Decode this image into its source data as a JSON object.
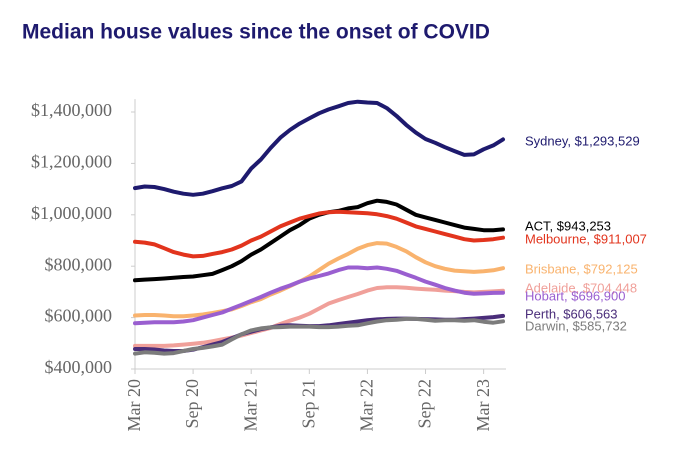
{
  "chart_data": {
    "type": "line",
    "title": "Median house values since the onset of COVID",
    "categories": [
      "Mar 20",
      null,
      null,
      null,
      null,
      null,
      "Sep 20",
      null,
      null,
      null,
      null,
      null,
      "Mar 21",
      null,
      null,
      null,
      null,
      null,
      "Sep 21",
      null,
      null,
      null,
      null,
      null,
      "Mar 22",
      null,
      null,
      null,
      null,
      null,
      "Sep 22",
      null,
      null,
      null,
      null,
      null,
      "Mar 23",
      null,
      null
    ],
    "ylim": [
      400000,
      1450000
    ],
    "yticks": [
      {
        "value": 400000,
        "label": "$400,000"
      },
      {
        "value": 600000,
        "label": "$600,000"
      },
      {
        "value": 800000,
        "label": "$800,000"
      },
      {
        "value": 1000000,
        "label": "$1,000,000"
      },
      {
        "value": 1200000,
        "label": "$1,200,000"
      },
      {
        "value": 1400000,
        "label": "$1,400,000"
      }
    ],
    "grid": false,
    "series": [
      {
        "name": "Sydney, $1,293,529",
        "color": "#1e1a6e",
        "values": [
          1104000,
          1110000,
          1108000,
          1100000,
          1090000,
          1082000,
          1078000,
          1082000,
          1092000,
          1103000,
          1112000,
          1130000,
          1180000,
          1215000,
          1260000,
          1300000,
          1330000,
          1355000,
          1375000,
          1395000,
          1410000,
          1422000,
          1435000,
          1440000,
          1437000,
          1435000,
          1415000,
          1385000,
          1350000,
          1320000,
          1295000,
          1280000,
          1263000,
          1248000,
          1233000,
          1235000,
          1255000,
          1270000,
          1293529
        ]
      },
      {
        "name": "ACT, $943,253",
        "color": "#000000",
        "values": [
          745000,
          748000,
          750000,
          752000,
          755000,
          758000,
          760000,
          765000,
          770000,
          785000,
          800000,
          820000,
          845000,
          865000,
          890000,
          915000,
          940000,
          960000,
          985000,
          1000000,
          1010000,
          1015000,
          1025000,
          1030000,
          1045000,
          1055000,
          1050000,
          1040000,
          1020000,
          1000000,
          990000,
          980000,
          970000,
          960000,
          950000,
          945000,
          940000,
          940000,
          943253
        ]
      },
      {
        "name": "Melbourne, $911,007",
        "color": "#e2341d",
        "values": [
          895000,
          892000,
          885000,
          870000,
          855000,
          845000,
          838000,
          840000,
          848000,
          855000,
          865000,
          880000,
          900000,
          915000,
          935000,
          955000,
          970000,
          985000,
          995000,
          1005000,
          1010000,
          1012000,
          1010000,
          1008000,
          1006000,
          1002000,
          995000,
          985000,
          970000,
          955000,
          945000,
          935000,
          925000,
          915000,
          905000,
          900000,
          902000,
          905000,
          911007
        ]
      },
      {
        "name": "Brisbane, $792,125",
        "color": "#f9b36e",
        "values": [
          608000,
          610000,
          610000,
          608000,
          605000,
          605000,
          608000,
          612000,
          618000,
          625000,
          632000,
          645000,
          660000,
          672000,
          690000,
          705000,
          722000,
          740000,
          760000,
          785000,
          810000,
          830000,
          848000,
          868000,
          882000,
          890000,
          888000,
          875000,
          858000,
          835000,
          815000,
          800000,
          790000,
          783000,
          780000,
          778000,
          780000,
          784000,
          792125
        ]
      },
      {
        "name": "Adelaide, $704,448",
        "color": "#f0a09a",
        "values": [
          490000,
          490000,
          490000,
          490000,
          492000,
          495000,
          498000,
          502000,
          508000,
          515000,
          522000,
          530000,
          540000,
          550000,
          560000,
          575000,
          588000,
          600000,
          615000,
          635000,
          655000,
          668000,
          680000,
          692000,
          705000,
          715000,
          718000,
          718000,
          716000,
          713000,
          710000,
          708000,
          705000,
          703000,
          700000,
          698000,
          700000,
          702000,
          704448
        ]
      },
      {
        "name": "Hobart, $696,900",
        "color": "#9a5fd0",
        "values": [
          578000,
          580000,
          582000,
          582000,
          582000,
          585000,
          590000,
          600000,
          610000,
          620000,
          635000,
          650000,
          665000,
          680000,
          697000,
          712000,
          725000,
          740000,
          752000,
          762000,
          772000,
          785000,
          795000,
          795000,
          792000,
          795000,
          790000,
          782000,
          768000,
          755000,
          740000,
          728000,
          715000,
          705000,
          697000,
          693000,
          694000,
          696000,
          696900
        ]
      },
      {
        "name": "Perth, $606,563",
        "color": "#4a2d7a",
        "values": [
          478000,
          478000,
          476000,
          472000,
          470000,
          470000,
          475000,
          485000,
          495000,
          505000,
          520000,
          535000,
          545000,
          555000,
          562000,
          568000,
          570000,
          568000,
          567000,
          567000,
          570000,
          575000,
          580000,
          585000,
          590000,
          593000,
          595000,
          596000,
          596000,
          595000,
          594000,
          593000,
          592000,
          592000,
          594000,
          596000,
          599000,
          602000,
          606563
        ]
      },
      {
        "name": "Darwin, $585,732",
        "color": "#7c7c7c",
        "values": [
          460000,
          465000,
          463000,
          460000,
          462000,
          470000,
          478000,
          482000,
          488000,
          495000,
          515000,
          535000,
          550000,
          558000,
          562000,
          563000,
          565000,
          565000,
          565000,
          563000,
          563000,
          565000,
          568000,
          570000,
          578000,
          585000,
          590000,
          592000,
          595000,
          595000,
          592000,
          588000,
          590000,
          590000,
          588000,
          590000,
          584000,
          580000,
          585732
        ]
      }
    ]
  }
}
